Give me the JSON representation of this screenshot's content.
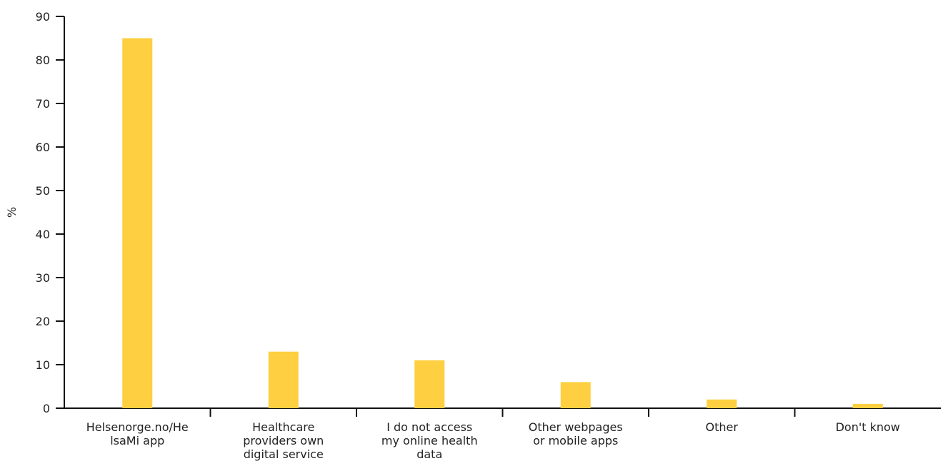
{
  "chart_data": {
    "type": "bar",
    "title": "",
    "xlabel": "",
    "ylabel": "%",
    "ylim": [
      0,
      90
    ],
    "yticks": [
      0,
      10,
      20,
      30,
      40,
      50,
      60,
      70,
      80,
      90
    ],
    "grid": false,
    "legend": "none",
    "categories": [
      [
        "Helsenorge.no/He",
        "lsaMi app"
      ],
      [
        "Healthcare",
        "providers own",
        "digital service"
      ],
      [
        "I do not access",
        "my online health",
        "data"
      ],
      [
        "Other webpages",
        "or mobile apps"
      ],
      [
        "Other"
      ],
      [
        "Don't know"
      ]
    ],
    "series": [
      {
        "values": [
          85,
          13,
          11,
          6,
          2,
          1
        ]
      }
    ],
    "colors": {
      "bar": "#FDCF41",
      "axis": "#111111",
      "text": "#222222"
    }
  }
}
